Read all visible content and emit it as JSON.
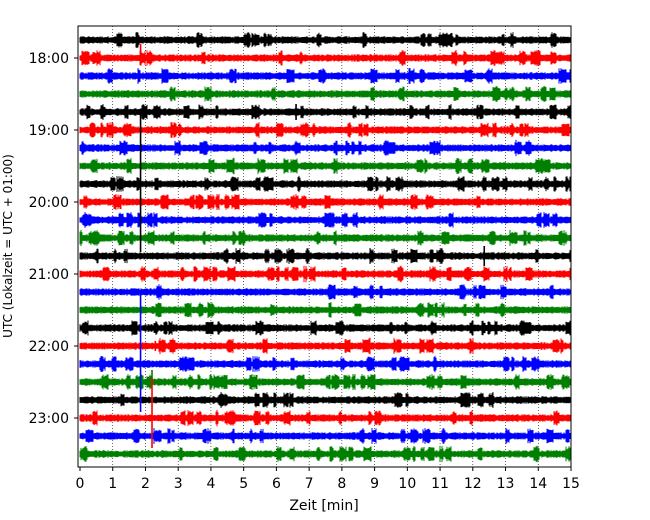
{
  "chart_data": {
    "type": "line",
    "title": "",
    "xlabel": "Zeit  [min]",
    "ylabel": "UTC (Lokalzeit = UTC + 01:00)",
    "xlim": [
      0,
      15
    ],
    "x_ticks": [
      "0",
      "1",
      "2",
      "3",
      "4",
      "5",
      "6",
      "7",
      "8",
      "9",
      "10",
      "11",
      "12",
      "13",
      "14",
      "15"
    ],
    "y_ticks": [
      "18:00",
      "19:00",
      "20:00",
      "21:00",
      "22:00",
      "23:00"
    ],
    "grid": "vertical dotted at each minute",
    "legend": "none",
    "trace_start": "17:45",
    "trace_interval_min": 15,
    "trace_count": 24,
    "trace_colors": [
      "#000000",
      "#ff0000",
      "#0000ff",
      "#008000"
    ],
    "events": [
      {
        "trace": "18:00",
        "x": 1.85,
        "amp_up": 14,
        "amp_down": 0
      },
      {
        "trace": "18:45",
        "x": 1.85,
        "amp_up": 0,
        "amp_down": 140
      },
      {
        "trace": "21:15",
        "x": 1.85,
        "amp_up": 0,
        "amp_down": 120
      },
      {
        "trace": "20:45",
        "x": 12.35,
        "amp_up": 10,
        "amp_down": 10
      },
      {
        "trace": "18:45",
        "x": 6.6,
        "amp_up": 8,
        "amp_down": 8
      },
      {
        "trace": "22:00",
        "x": 2.3,
        "amp_up": 5,
        "amp_down": 5
      },
      {
        "trace": "22:30",
        "x": 2.2,
        "amp_up": 12,
        "amp_down": 0
      },
      {
        "trace": "23:00",
        "x": 2.2,
        "amp_up": 40,
        "amp_down": 30
      },
      {
        "trace": "22:45",
        "x": 6.35,
        "amp_up": 7,
        "amp_down": 4
      }
    ]
  }
}
